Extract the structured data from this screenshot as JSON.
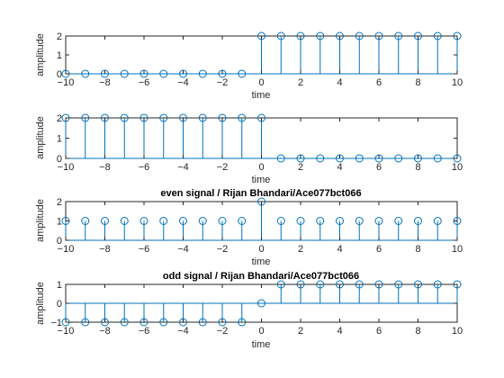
{
  "chart_data": [
    {
      "type": "stem",
      "title": "",
      "xlabel": "time",
      "ylabel": "amplitude",
      "xlim": [
        -10,
        10
      ],
      "ylim": [
        0,
        2
      ],
      "xticks": [
        -10,
        -8,
        -6,
        -4,
        -2,
        0,
        2,
        4,
        6,
        8,
        10
      ],
      "yticks": [
        0,
        1,
        2
      ],
      "x": [
        -10,
        -9,
        -8,
        -7,
        -6,
        -5,
        -4,
        -3,
        -2,
        -1,
        0,
        1,
        2,
        3,
        4,
        5,
        6,
        7,
        8,
        9,
        10
      ],
      "y": [
        0,
        0,
        0,
        0,
        0,
        0,
        0,
        0,
        0,
        0,
        2,
        2,
        2,
        2,
        2,
        2,
        2,
        2,
        2,
        2,
        2
      ],
      "color": "#0072bd"
    },
    {
      "type": "stem",
      "title": "",
      "xlabel": "time",
      "ylabel": "amplitude",
      "xlim": [
        -10,
        10
      ],
      "ylim": [
        0,
        2
      ],
      "xticks": [
        -10,
        -8,
        -6,
        -4,
        -2,
        0,
        2,
        4,
        6,
        8,
        10
      ],
      "yticks": [
        0,
        1,
        2
      ],
      "x": [
        -10,
        -9,
        -8,
        -7,
        -6,
        -5,
        -4,
        -3,
        -2,
        -1,
        0,
        1,
        2,
        3,
        4,
        5,
        6,
        7,
        8,
        9,
        10
      ],
      "y": [
        2,
        2,
        2,
        2,
        2,
        2,
        2,
        2,
        2,
        2,
        2,
        0,
        0,
        0,
        0,
        0,
        0,
        0,
        0,
        0,
        0
      ],
      "color": "#0072bd"
    },
    {
      "type": "stem",
      "title": "even signal / Rijan Bhandari/Ace077bct066",
      "xlabel": "time",
      "ylabel": "amplitude",
      "xlim": [
        -10,
        10
      ],
      "ylim": [
        0,
        2
      ],
      "xticks": [
        -10,
        -8,
        -6,
        -4,
        -2,
        0,
        2,
        4,
        6,
        8,
        10
      ],
      "yticks": [
        0,
        1,
        2
      ],
      "x": [
        -10,
        -9,
        -8,
        -7,
        -6,
        -5,
        -4,
        -3,
        -2,
        -1,
        0,
        1,
        2,
        3,
        4,
        5,
        6,
        7,
        8,
        9,
        10
      ],
      "y": [
        1,
        1,
        1,
        1,
        1,
        1,
        1,
        1,
        1,
        1,
        2,
        1,
        1,
        1,
        1,
        1,
        1,
        1,
        1,
        1,
        1
      ],
      "color": "#0072bd"
    },
    {
      "type": "stem",
      "title": "odd signal / Rijan Bhandari/Ace077bct066",
      "xlabel": "time",
      "ylabel": "amplitude",
      "xlim": [
        -10,
        10
      ],
      "ylim": [
        -1,
        1
      ],
      "xticks": [
        -10,
        -8,
        -6,
        -4,
        -2,
        0,
        2,
        4,
        6,
        8,
        10
      ],
      "yticks": [
        -1,
        0,
        1
      ],
      "x": [
        -10,
        -9,
        -8,
        -7,
        -6,
        -5,
        -4,
        -3,
        -2,
        -1,
        0,
        1,
        2,
        3,
        4,
        5,
        6,
        7,
        8,
        9,
        10
      ],
      "y": [
        -1,
        -1,
        -1,
        -1,
        -1,
        -1,
        -1,
        -1,
        -1,
        -1,
        0,
        1,
        1,
        1,
        1,
        1,
        1,
        1,
        1,
        1,
        1
      ],
      "color": "#0072bd"
    }
  ]
}
